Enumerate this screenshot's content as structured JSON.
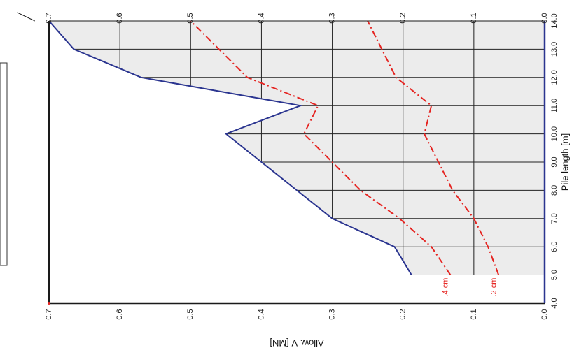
{
  "chart_data": {
    "type": "line",
    "orientation": "rotated-90",
    "xlabel": "Pile length [m]",
    "ylabel": "Allow. V [MN]",
    "xlim": [
      4.0,
      14.0
    ],
    "ylim": [
      0.0,
      0.7
    ],
    "x_ticks": [
      "4.0",
      "5.0",
      "6.0",
      "7.0",
      "8.0",
      "9.0",
      "10.0",
      "11.0",
      "12.0",
      "13.0",
      "14.0"
    ],
    "y_ticks": [
      "0.0",
      "0.1",
      "0.2",
      "0.3",
      "0.4",
      "0.5",
      "0.6",
      "0.7"
    ],
    "grid": true,
    "colors": {
      "capacity": "#2b3590",
      "settlement": "#e52421",
      "fill": "#ececec",
      "axis": "#1a1a1a"
    },
    "series": [
      {
        "style": "solid",
        "x": [
          5,
          6,
          7,
          8,
          9,
          10,
          11,
          12,
          13,
          14
        ],
        "y": [
          0.188,
          0.212,
          0.3,
          0.35,
          0.4,
          0.45,
          0.345,
          0.57,
          0.665,
          0.72
        ]
      },
      {
        "name": ".4 cm",
        "style": "dashdot",
        "x": [
          5,
          6,
          7,
          8,
          9,
          10,
          11,
          12,
          13,
          14
        ],
        "y": [
          0.133,
          0.16,
          0.205,
          0.26,
          0.3,
          0.34,
          0.32,
          0.42,
          0.46,
          0.5
        ]
      },
      {
        "name": ".2 cm",
        "style": "dashdot",
        "x": [
          5,
          6,
          7,
          8,
          9,
          10,
          11,
          12,
          13,
          14
        ],
        "y": [
          0.065,
          0.08,
          0.1,
          0.13,
          0.15,
          0.17,
          0.16,
          0.21,
          0.23,
          0.25
        ]
      }
    ]
  }
}
